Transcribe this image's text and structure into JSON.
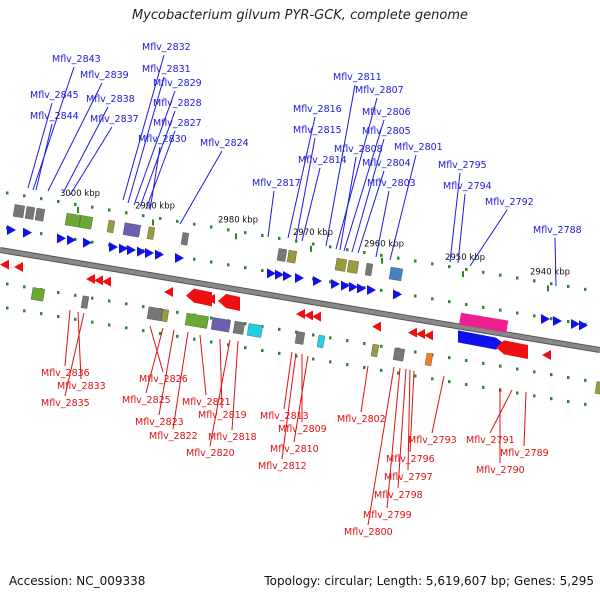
{
  "title": "Mycobacterium gilvum PYR-GCK, complete genome",
  "footer": {
    "accession": "Accession: NC_009338",
    "summary": "Topology: circular; Length: 5,619,607 bp; Genes: 5,295"
  },
  "scale": {
    "unit": "kbp",
    "ticks": [
      "3000 kbp",
      "2990 kbp",
      "2980 kbp",
      "2970 kbp",
      "2960 kbp",
      "2950 kbp",
      "2940 kbp"
    ]
  },
  "colors": {
    "forward_label": "#1a1adc",
    "reverse_label": "#e01010",
    "forward_gene": "#1010ee",
    "reverse_gene": "#ee1010",
    "backbone": "#888888",
    "tick": "#2a8a2a",
    "rna_magenta": "#ee2090",
    "cog_green": "#6aaa30",
    "cog_gray": "#777777",
    "cog_olive": "#9a9a40",
    "cog_purple": "#6a60b0",
    "cog_orange": "#ee8020",
    "cog_cyan": "#20d0e0",
    "cog_steel": "#4a80c0"
  },
  "forward_labels": [
    "Mflv_2843",
    "Mflv_2839",
    "Mflv_2845",
    "Mflv_2838",
    "Mflv_2844",
    "Mflv_2837",
    "Mflv_2832",
    "Mflv_2831",
    "Mflv_2829",
    "Mflv_2828",
    "Mflv_2827",
    "Mflv_2830",
    "Mflv_2824",
    "Mflv_2811",
    "Mflv_2807",
    "Mflv_2816",
    "Mflv_2806",
    "Mflv_2815",
    "Mflv_2805",
    "Mflv_2808",
    "Mflv_2814",
    "Mflv_2804",
    "Mflv_2801",
    "Mflv_2817",
    "Mflv_2803",
    "Mflv_2795",
    "Mflv_2794",
    "Mflv_2792",
    "Mflv_2788"
  ],
  "reverse_labels": [
    "Mflv_2836",
    "Mflv_2833",
    "Mflv_2835",
    "Mflv_2826",
    "Mflv_2825",
    "Mflv_2823",
    "Mflv_2822",
    "Mflv_2821",
    "Mflv_2819",
    "Mflv_2818",
    "Mflv_2820",
    "Mflv_2813",
    "Mflv_2809",
    "Mflv_2810",
    "Mflv_2812",
    "Mflv_2802",
    "Mflv_2793",
    "Mflv_2796",
    "Mflv_2797",
    "Mflv_2798",
    "Mflv_2799",
    "Mflv_2800",
    "Mflv_2791",
    "Mflv_2789",
    "Mflv_2790"
  ]
}
